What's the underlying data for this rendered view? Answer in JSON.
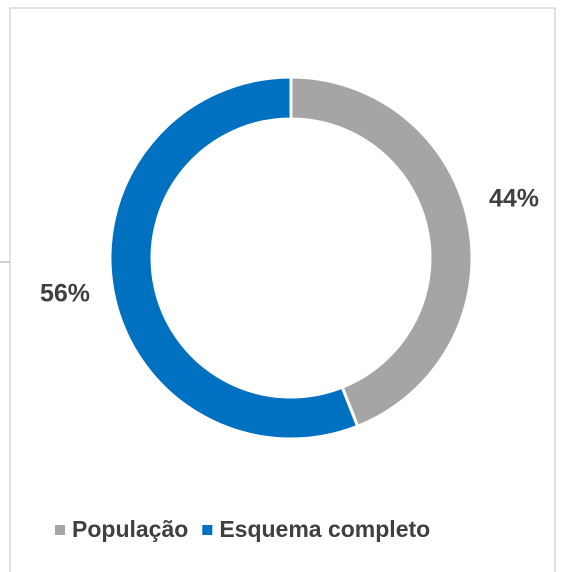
{
  "chart_data": {
    "type": "donut",
    "categories": [
      "População",
      "Esquema completo"
    ],
    "values": [
      44,
      56
    ],
    "value_labels": [
      "44%",
      "56%"
    ],
    "colors": [
      "#a5a5a5",
      "#0070c0"
    ],
    "legend": "bottom"
  }
}
